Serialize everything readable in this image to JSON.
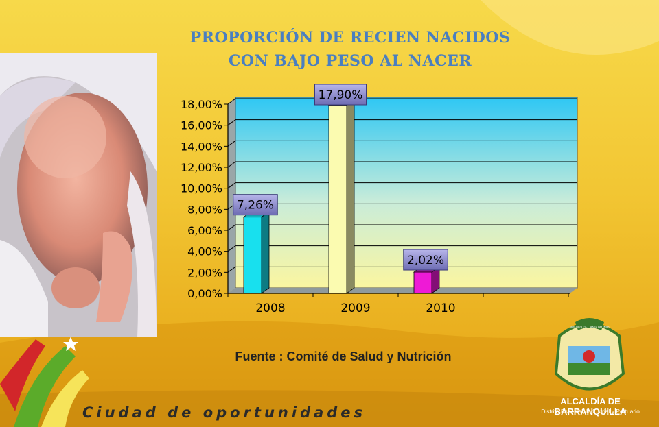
{
  "slide": {
    "title_line1": "PROPORCIÓN DE RECIEN NACIDOS",
    "title_line2": "CON BAJO PESO AL NACER",
    "source": "Fuente : Comité de Salud y Nutrición",
    "slogan": "Ciudad de oportunidades",
    "logo_name": "ALCALDÍA DE BARRANQUILLA",
    "logo_subtitle": "Distrito Especial, Industrial y Portuario",
    "logo_banner": "PREMIO DEL PATRIMONIO"
  },
  "chart_data": {
    "type": "bar",
    "title": "PROPORCIÓN DE RECIEN NACIDOS CON BAJO PESO AL NACER",
    "categories": [
      "2008",
      "2009",
      "2010"
    ],
    "values": [
      7.26,
      17.9,
      2.02
    ],
    "data_labels": [
      "7,26%",
      "17,90%",
      "2,02%"
    ],
    "bar_colors": [
      "#18e0ee",
      "#fbfbb0",
      "#ee1ad6"
    ],
    "ylim": [
      0,
      18
    ],
    "yticks": [
      0,
      2,
      4,
      6,
      8,
      10,
      12,
      14,
      16,
      18
    ],
    "ytick_labels": [
      "0,00%",
      "2,00%",
      "4,00%",
      "6,00%",
      "8,00%",
      "10,00%",
      "12,00%",
      "14,00%",
      "16,00%",
      "18,00%"
    ],
    "grid": true,
    "three_d": true,
    "legend": "none"
  }
}
